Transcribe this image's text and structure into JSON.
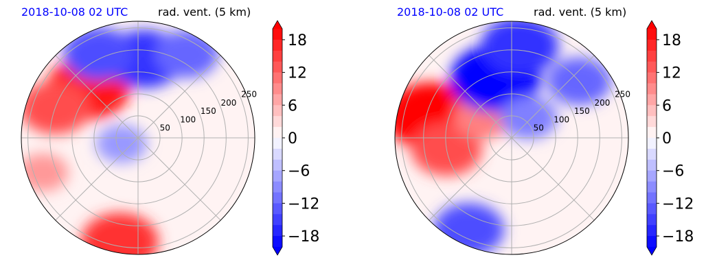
{
  "colors": {
    "negative_strong": "#0000ff",
    "positive_strong": "#ff0000",
    "neutral": "#ffffff",
    "grid": "#b0b0b0",
    "title_left": "#0000ff",
    "title_right": "#000000"
  },
  "chart_data": [
    {
      "type": "heatmap",
      "projection": "polar",
      "title_left": "2018-10-08 02 UTC",
      "title_right": "rad. vent. (5 km)",
      "radial_ticks": [
        50,
        100,
        150,
        200,
        250
      ],
      "rlim": [
        0,
        250
      ],
      "angular_gridlines_deg": [
        0,
        45,
        90,
        135,
        180,
        225,
        270,
        315
      ],
      "grid": true,
      "colorbar": {
        "ticks": [
          18,
          12,
          6,
          0,
          -6,
          -12,
          -18
        ],
        "tick_labels": [
          "18",
          "12",
          "6",
          "0",
          "−6",
          "−12",
          "−18"
        ],
        "range": [
          -20,
          20
        ],
        "levels": 20,
        "extend": "both",
        "cmap": "bwr"
      },
      "features": [
        {
          "sign": "positive",
          "value": 18,
          "r": 160,
          "theta_deg": 135
        },
        {
          "sign": "positive",
          "value": 14,
          "r": 200,
          "theta_deg": 160
        },
        {
          "sign": "positive",
          "value": 8,
          "r": 230,
          "theta_deg": 200
        },
        {
          "sign": "positive",
          "value": 16,
          "r": 240,
          "theta_deg": 260
        },
        {
          "sign": "negative",
          "value": -16,
          "r": 180,
          "theta_deg": 85
        },
        {
          "sign": "negative",
          "value": -12,
          "r": 220,
          "theta_deg": 60
        },
        {
          "sign": "negative",
          "value": -14,
          "r": 210,
          "theta_deg": 115
        },
        {
          "sign": "negative",
          "value": -8,
          "r": 40,
          "theta_deg": 200
        }
      ]
    },
    {
      "type": "heatmap",
      "projection": "polar",
      "title_left": "2018-10-08 02 UTC",
      "title_right": "rad. vent. (5 km)",
      "radial_ticks": [
        50,
        100,
        150,
        200,
        250
      ],
      "rlim": [
        0,
        250
      ],
      "angular_gridlines_deg": [
        0,
        45,
        90,
        135,
        180,
        225,
        270,
        315
      ],
      "grid": true,
      "colorbar": {
        "ticks": [
          18,
          12,
          6,
          0,
          -6,
          -12,
          -18
        ],
        "tick_labels": [
          "18",
          "12",
          "6",
          "0",
          "−6",
          "−12",
          "−18"
        ],
        "range": [
          -20,
          20
        ],
        "levels": 20,
        "extend": "both",
        "cmap": "bwr"
      },
      "features": [
        {
          "sign": "positive",
          "value": 20,
          "r": 190,
          "theta_deg": 165
        },
        {
          "sign": "positive",
          "value": 14,
          "r": 150,
          "theta_deg": 190
        },
        {
          "sign": "positive",
          "value": 10,
          "r": 80,
          "theta_deg": 145
        },
        {
          "sign": "negative",
          "value": -20,
          "r": 140,
          "theta_deg": 105
        },
        {
          "sign": "negative",
          "value": -16,
          "r": 210,
          "theta_deg": 85
        },
        {
          "sign": "negative",
          "value": -10,
          "r": 60,
          "theta_deg": 50
        },
        {
          "sign": "negative",
          "value": -12,
          "r": 200,
          "theta_deg": 40
        },
        {
          "sign": "negative",
          "value": -14,
          "r": 230,
          "theta_deg": 245
        }
      ]
    }
  ]
}
